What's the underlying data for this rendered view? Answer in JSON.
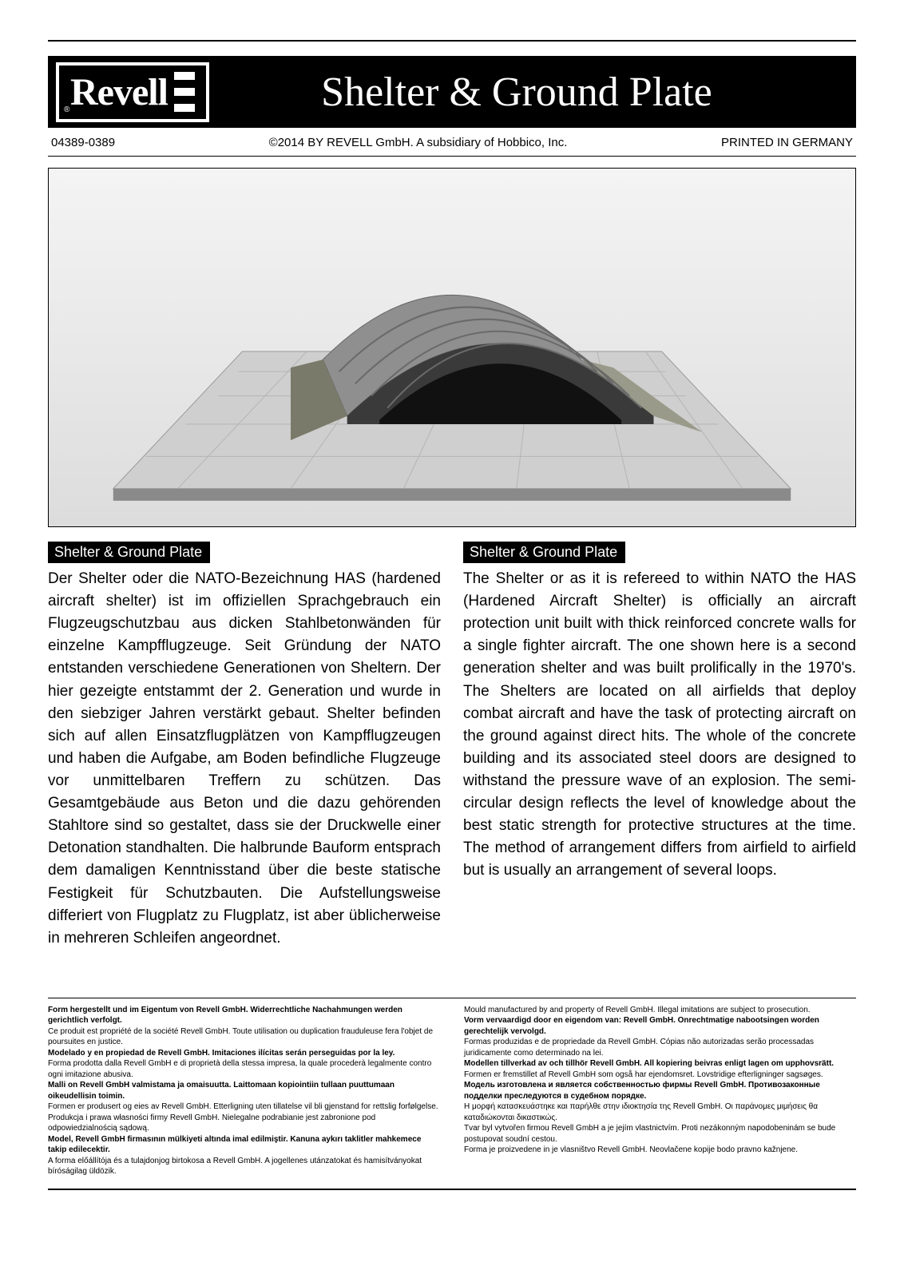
{
  "header": {
    "logo_text": "Revell",
    "title": "Shelter & Ground Plate"
  },
  "meta": {
    "code": "04389-0389",
    "copyright": "©2014 BY REVELL GmbH. A subsidiary of Hobbico, Inc.",
    "printed": "PRINTED IN GERMANY"
  },
  "hero": {
    "background_gradient": [
      "#f4f4f4",
      "#e6e6e6",
      "#dcdcdc"
    ],
    "description": "rendered model kit image of hardened aircraft shelter on ground plate"
  },
  "columns": {
    "left": {
      "title": "Shelter & Ground Plate",
      "body": "Der Shelter oder die NATO-Bezeichnung HAS (hardened aircraft shelter) ist im offiziellen Sprachgebrauch ein Flugzeugschutzbau aus dicken Stahlbetonwänden für einzelne Kampf­flugzeuge. Seit Gründung der NATO entstanden verschiedene Generationen von Sheltern. Der hier gezeigte entstammt der 2. Generation und wurde in den siebziger Jahren verstärkt gebaut. Shelter befinden sich auf allen Einsatz­flugplätzen von Kampfflugzeugen und haben die Aufgabe, am Boden befindliche Flugzeuge vor unmittelbaren Treffern zu schützen. Das Gesamtgebäude aus Beton und die dazu gehörenden Stahltore sind so gestaltet, dass sie der Druckwelle einer Detonation standhalten. Die halbrunde Bauform entsprach dem damaligen Kenntnisstand über die beste statische Festigkeit für Schutzbauten. Die Aufstellungsweise differiert von Flugplatz zu Flugplatz, ist aber üblicherweise in mehreren Schleifen angeordnet."
    },
    "right": {
      "title": "Shelter & Ground Plate",
      "body": "The Shelter or as it is refereed to within NATO the HAS (Hardened Aircraft Shelter) is officially an aircraft protection unit built with thick reinforced concrete walls for a single fighter aircraft. The one shown here is a second generation shelter and was built prolifically in the 1970's. The Shelters are located on all airfields that deploy combat aircraft and have the task of protecting aircraft on the ground against direct hits. The whole of the concrete building and its associated steel doors are designed to withstand the pressure wave of an explosion. The semi-circular design reflects the level of knowledge about the best static strength for protective structures at the time. The method of arrangement differs from airfield to airfield but is usually an arrangement of several loops."
    }
  },
  "legal": {
    "left": [
      {
        "bold": true,
        "text": "Form hergestellt und im Eigentum von Revell GmbH. Widerrechtliche Nachahmungen werden gerichtlich verfolgt."
      },
      {
        "bold": false,
        "text": "Ce produit est propriété de la société Revell GmbH. Toute utilisation ou duplication frauduleuse fera l'objet de poursuites en justice."
      },
      {
        "bold": true,
        "text": "Modelado y en propiedad de Revell GmbH. Imitaciones ilícitas serán perseguidas por la ley."
      },
      {
        "bold": false,
        "text": "Forma prodotta dalla Revell GmbH e di proprietà della stessa impresa, la quale procederà legalmente contro ogni imitazione abusiva."
      },
      {
        "bold": true,
        "text": "Malli on Revell GmbH valmistama ja omaisuutta. Laittomaan kopiointiin tullaan puuttumaan oikeudellisin toimin."
      },
      {
        "bold": false,
        "text": "Formen er produsert og eies av Revell GmbH. Etterligning uten tillatelse vil bli gjenstand for rettslig forfølgelse."
      },
      {
        "bold": false,
        "text": "Produkcja i prawa własności firmy Revell GmbH. Nielegalne podrabianie jest zabronione pod odpowiedzialnością sądową."
      },
      {
        "bold": true,
        "text": "Model, Revell GmbH firmasının mülkiyeti altında imal edilmiştir. Kanuna aykırı taklitler mahkemece takip edilecektir."
      },
      {
        "bold": false,
        "text": "A forma előállítója és a tulajdonjog birtokosa a Revell GmbH. A jogellenes utánzatokat és hamisítványokat bíróságilag üldözik."
      }
    ],
    "right": [
      {
        "bold": false,
        "text": "Mould manufactured by and property of Revell GmbH. Illegal imitations are subject to prosecution."
      },
      {
        "bold": true,
        "text": "Vorm vervaardigd door en eigendom van: Revell GmbH. Onrechtmatige nabootsingen worden gerechtelijk vervolgd."
      },
      {
        "bold": false,
        "text": "Formas produzidas e de propriedade da Revell GmbH. Cópias não autorizadas serão processadas juridicamente como determinado na lei."
      },
      {
        "bold": true,
        "text": "Modellen tillverkad av och tillhör Revell GmbH. All kopiering beivras enligt lagen om upphovsrätt."
      },
      {
        "bold": false,
        "text": "Formen er fremstillet af Revell GmbH som også har ejendomsret. Lovstridige efterligninger sagsøges."
      },
      {
        "bold": true,
        "text": "Модель изготовлена и является собственностью фирмы Revell GmbH. Противозаконные подделки преследуются в судебном порядке."
      },
      {
        "bold": false,
        "text": "Η μορφή κατασκευάστηκε και παρήλθε στην ιδιοκτησία της Revell GmbH. Οι παράνομες μιμήσεις θα καταδιώκονται δικαστικώς."
      },
      {
        "bold": false,
        "text": "Tvar byl vytvořen firmou Revell GmbH a je jejím vlastnictvím. Proti nezákonným napodobeninám se bude postupovat soudní cestou."
      },
      {
        "bold": false,
        "text": "Forma je proizvedene in je vlasništvo Revell GmbH. Neovlačene kopije bodo pravno kažnjene."
      }
    ]
  },
  "colors": {
    "black": "#000000",
    "white": "#ffffff",
    "paper": "#ffffff"
  },
  "typography": {
    "title_font": "Georgia serif",
    "title_size_pt": 39,
    "body_size_pt": 14,
    "legal_size_pt": 7.5
  }
}
